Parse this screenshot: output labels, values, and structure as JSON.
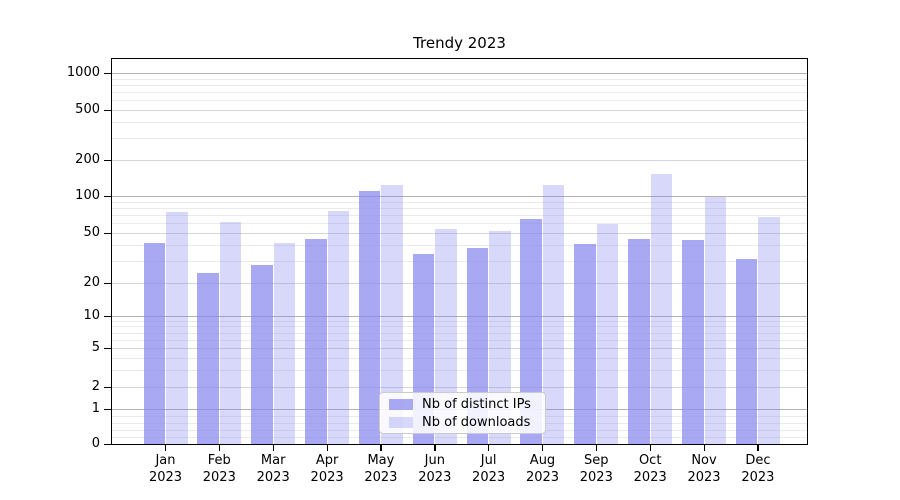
{
  "title": "Trendy 2023",
  "colors": {
    "bar_dark": "rgba(134,134,238,0.72)",
    "bar_light": "rgba(134,134,238,0.32)",
    "bar_base_hex": "#8686ee",
    "grid_major": "#b2b2b2",
    "grid_mid": "#d6d6d6",
    "grid_faint": "#ebebeb",
    "spine": "#000000",
    "legend_border": "#cccccc"
  },
  "chart_data": {
    "type": "bar",
    "title": "Trendy 2023",
    "categories": [
      "Jan",
      "Feb",
      "Mar",
      "Apr",
      "May",
      "Jun",
      "Jul",
      "Aug",
      "Sep",
      "Oct",
      "Nov",
      "Dec"
    ],
    "year_label": "2023",
    "series": [
      {
        "name": "Nb of distinct IPs",
        "values": [
          42,
          24,
          28,
          45,
          110,
          34,
          38,
          65,
          41,
          45,
          44,
          31
        ]
      },
      {
        "name": "Nb of downloads",
        "values": [
          74,
          61,
          42,
          75,
          124,
          54,
          52,
          124,
          59,
          152,
          99,
          68
        ]
      }
    ],
    "xlabel": "",
    "ylabel": "",
    "yscale": "symlog",
    "yticks": [
      0,
      1,
      2,
      5,
      10,
      20,
      50,
      100,
      200,
      500,
      1000
    ],
    "ylim": [
      0,
      1300
    ],
    "grid": true,
    "legend_position": "lower center"
  }
}
